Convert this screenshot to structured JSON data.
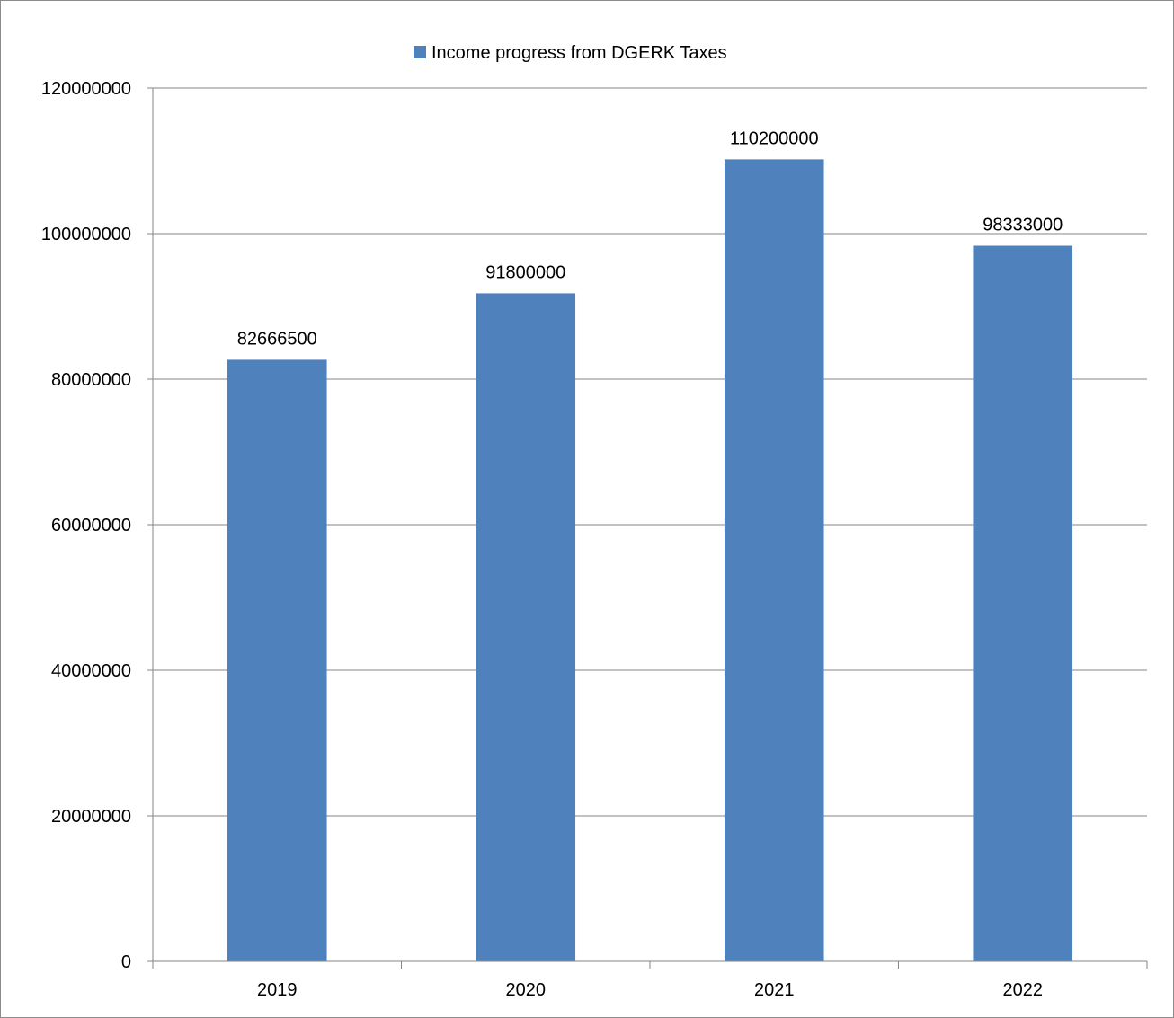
{
  "chart_data": {
    "type": "bar",
    "categories": [
      "2019",
      "2020",
      "2021",
      "2022"
    ],
    "series": [
      {
        "name": "Income progress from DGERK Taxes",
        "values": [
          82666500,
          91800000,
          110200000,
          98333000
        ],
        "color": "#4F81BD"
      }
    ],
    "data_labels": [
      "82666500",
      "91800000",
      "110200000",
      "98333000"
    ],
    "y_ticks": [
      "0",
      "20000000",
      "40000000",
      "60000000",
      "80000000",
      "100000000",
      "120000000"
    ],
    "ylim": [
      0,
      120000000
    ],
    "grid": "horizontal",
    "legend": {
      "position": "top",
      "label": "Income progress from DGERK Taxes"
    },
    "colors": {
      "bar": "#4F81BD",
      "grid": "#868686",
      "axis": "#868686"
    }
  }
}
